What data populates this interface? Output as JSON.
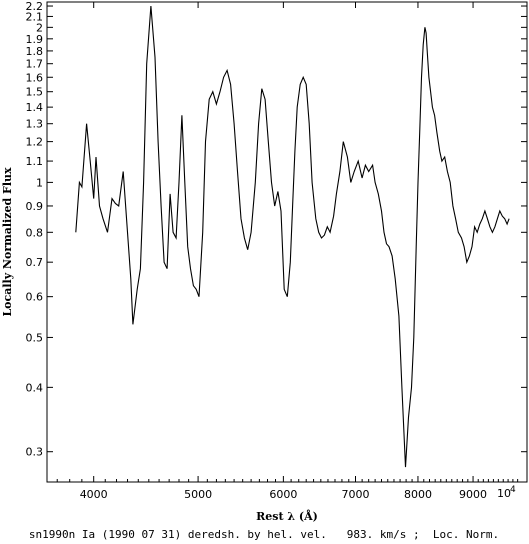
{
  "chart_data": {
    "type": "line",
    "xlabel": "Rest λ (Å)",
    "ylabel": "Locally Normalized Flux",
    "x_scale": "log",
    "y_scale": "log",
    "xlim": [
      3620,
      10100
    ],
    "ylim": [
      0.262,
      2.24
    ],
    "x_ticks": [
      4000,
      5000,
      6000,
      7000,
      8000,
      9000
    ],
    "x_tick_labels": [
      "4000",
      "5000",
      "6000",
      "7000",
      "8000",
      "9000"
    ],
    "x_end_label": "10",
    "x_end_exponent": "4",
    "y_ticks": [
      0.3,
      0.4,
      0.5,
      0.6,
      0.7,
      0.8,
      0.9,
      1,
      1.1,
      1.2,
      1.3,
      1.4,
      1.5,
      1.6,
      1.7,
      1.8,
      1.9,
      2,
      2.1,
      2.2
    ],
    "y_tick_labels": [
      "0.3",
      "0.4",
      "0.5",
      "0.6",
      "0.7",
      "0.8",
      "0.9",
      "1",
      "1.1",
      "1.2",
      "1.3",
      "1.4",
      "1.5",
      "1.6",
      "1.7",
      "1.8",
      "1.9",
      "2",
      "2.1",
      "2.2"
    ],
    "caption": "sn1990n Ia (1990 07 31) deredsh. by hel. vel.   983. km/s ;  Loc. Norm.",
    "series": [
      {
        "x": [
          3850,
          3880,
          3900,
          3940,
          3970,
          4000,
          4020,
          4050,
          4080,
          4120,
          4160,
          4190,
          4220,
          4260,
          4300,
          4330,
          4350,
          4390,
          4420,
          4450,
          4480,
          4520,
          4560,
          4590,
          4620,
          4650,
          4680,
          4710,
          4740,
          4770,
          4800,
          4830,
          4860,
          4890,
          4920,
          4950,
          4980,
          5010,
          5050,
          5080,
          5120,
          5160,
          5200,
          5240,
          5280,
          5320,
          5360,
          5400,
          5440,
          5480,
          5520,
          5560,
          5600,
          5650,
          5690,
          5730,
          5770,
          5810,
          5850,
          5890,
          5930,
          5970,
          6010,
          6050,
          6090,
          6120,
          6150,
          6180,
          6220,
          6260,
          6300,
          6340,
          6380,
          6430,
          6470,
          6510,
          6550,
          6590,
          6630,
          6680,
          6720,
          6770,
          6820,
          6880,
          6930,
          6980,
          7040,
          7100,
          7150,
          7200,
          7260,
          7300,
          7350,
          7400,
          7440,
          7480,
          7520,
          7570,
          7620,
          7680,
          7730,
          7790,
          7840,
          7890,
          7930,
          7970,
          8000,
          8030,
          8060,
          8090,
          8120,
          8140,
          8160,
          8190,
          8220,
          8250,
          8290,
          8330,
          8380,
          8420,
          8470,
          8520,
          8570,
          8620,
          8670,
          8720,
          8780,
          8830,
          8880,
          8930,
          8980,
          9030,
          9080,
          9130,
          9180,
          9230,
          9280,
          9330,
          9380,
          9430,
          9480,
          9530,
          9580,
          9630,
          9680,
          9720
        ],
        "y": [
          0.8,
          1.0,
          0.98,
          1.3,
          1.1,
          0.93,
          1.12,
          0.9,
          0.85,
          0.8,
          0.93,
          0.91,
          0.9,
          1.05,
          0.8,
          0.65,
          0.53,
          0.62,
          0.68,
          1.0,
          1.7,
          2.2,
          1.75,
          1.2,
          0.9,
          0.7,
          0.68,
          0.95,
          0.8,
          0.78,
          1.0,
          1.35,
          1.0,
          0.75,
          0.68,
          0.63,
          0.62,
          0.6,
          0.8,
          1.2,
          1.45,
          1.5,
          1.42,
          1.5,
          1.6,
          1.65,
          1.55,
          1.3,
          1.05,
          0.85,
          0.78,
          0.74,
          0.8,
          1.0,
          1.3,
          1.52,
          1.45,
          1.2,
          1.0,
          0.9,
          0.96,
          0.88,
          0.62,
          0.6,
          0.7,
          0.9,
          1.15,
          1.4,
          1.55,
          1.6,
          1.55,
          1.3,
          1.0,
          0.85,
          0.8,
          0.78,
          0.79,
          0.82,
          0.8,
          0.86,
          0.95,
          1.05,
          1.2,
          1.12,
          1.0,
          1.05,
          1.1,
          1.02,
          1.08,
          1.05,
          1.08,
          1.0,
          0.95,
          0.88,
          0.8,
          0.76,
          0.75,
          0.72,
          0.65,
          0.55,
          0.4,
          0.28,
          0.35,
          0.4,
          0.5,
          0.75,
          1.0,
          1.25,
          1.6,
          1.85,
          2.0,
          1.95,
          1.8,
          1.6,
          1.5,
          1.4,
          1.35,
          1.25,
          1.15,
          1.1,
          1.12,
          1.05,
          1.0,
          0.9,
          0.85,
          0.8,
          0.78,
          0.75,
          0.7,
          0.72,
          0.75,
          0.82,
          0.8,
          0.83,
          0.85,
          0.88,
          0.85,
          0.82,
          0.8,
          0.82,
          0.85,
          0.88,
          0.86,
          0.85,
          0.83,
          0.85
        ]
      }
    ]
  }
}
